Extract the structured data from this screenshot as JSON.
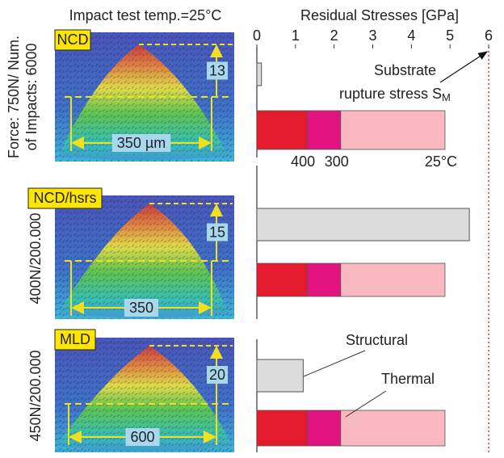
{
  "chart_data": {
    "type": "stacked-bar-panels",
    "subtitle": "Impact test temp.=25°C",
    "title": "Residual Stresses [GPa]",
    "xlim": [
      0,
      6
    ],
    "xticks": [
      0,
      1,
      2,
      3,
      4,
      5,
      6
    ],
    "groups": [
      {
        "material": "NCD",
        "condition": [
          "Force: 750N/ Num.",
          "of Impacts: 6000"
        ],
        "height_label": "13",
        "width_label": "350 µm"
      },
      {
        "material": "NCD/hsrs",
        "condition": [
          "400N/200.000"
        ],
        "height_label": "15",
        "width_label": "350"
      },
      {
        "material": "MLD",
        "condition": [
          "450N/200.000"
        ],
        "height_label": "20",
        "width_label": "600"
      }
    ],
    "series": [
      {
        "name": "Structural",
        "color": "#dcdcdc",
        "values": [
          0.12,
          5.5,
          1.2
        ]
      },
      {
        "name": "400",
        "color": "#e41b2c",
        "values": [
          1.3,
          1.3,
          1.3
        ]
      },
      {
        "name": "300",
        "color": "#e2127f",
        "values": [
          0.87,
          0.87,
          0.87
        ]
      },
      {
        "name": "25°C",
        "color": "#f7b8bf",
        "values": [
          2.7,
          2.7,
          2.7
        ]
      }
    ],
    "thermal_label": "Thermal",
    "rupture": {
      "value": 6,
      "color": "#e0303a",
      "lines": [
        "Substrate",
        "rupture stress S"
      ],
      "subscript": "M"
    }
  }
}
